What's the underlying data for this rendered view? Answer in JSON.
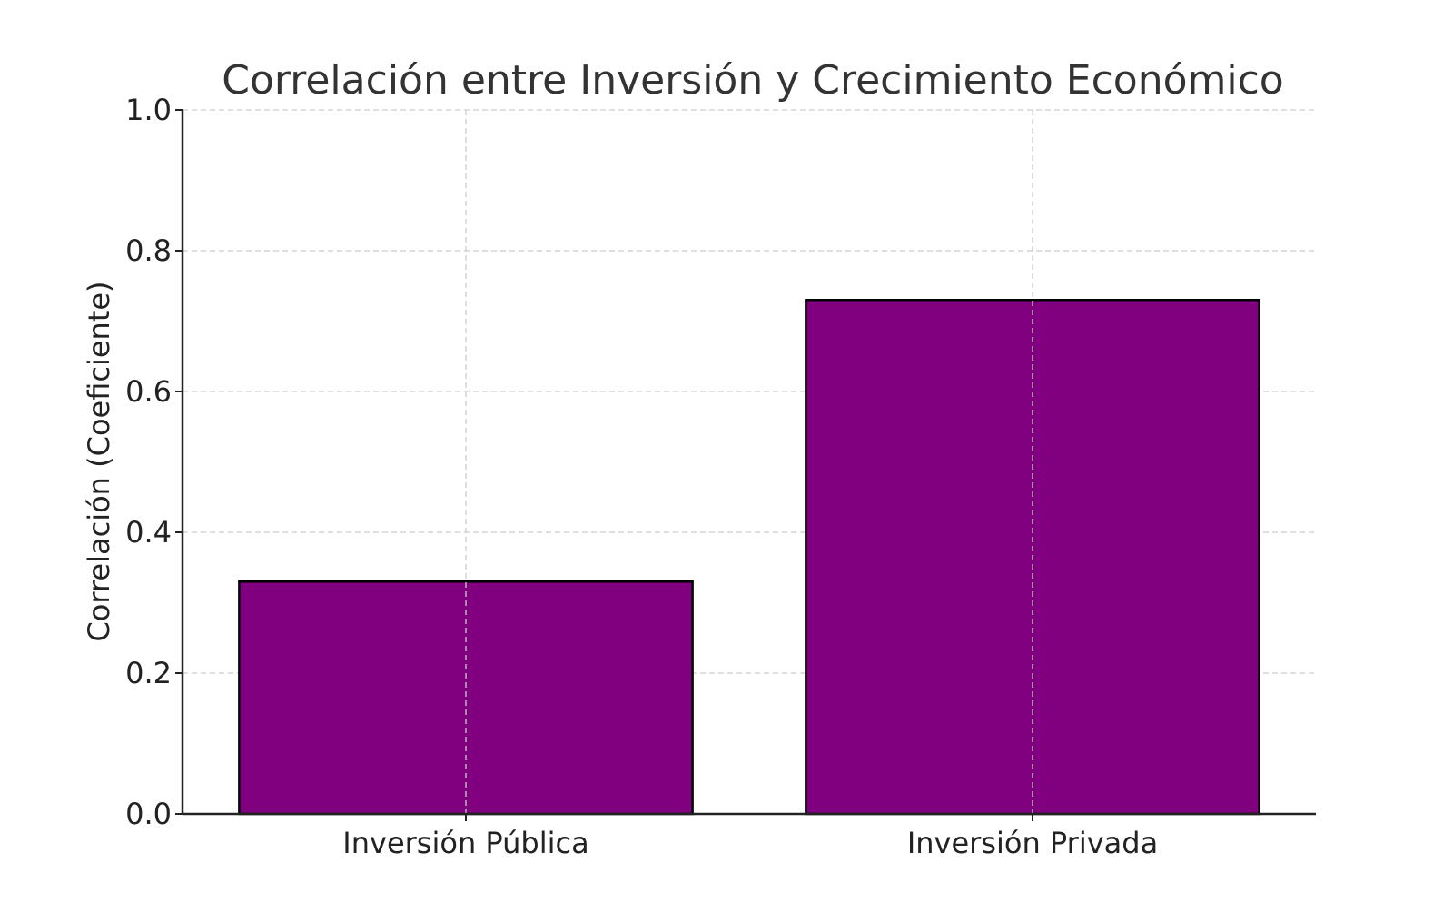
{
  "chart_data": {
    "type": "bar",
    "title": "Correlación entre Inversión y Crecimiento Económico",
    "xlabel": "",
    "ylabel": "Correlación (Coeficiente)",
    "categories": [
      "Inversión Pública",
      "Inversión Privada"
    ],
    "values": [
      0.33,
      0.73
    ],
    "ylim": [
      0,
      1.0
    ],
    "yticks": [
      "0.0",
      "0.2",
      "0.4",
      "0.6",
      "0.8",
      "1.0"
    ],
    "grid": true,
    "legend": "none",
    "colors": {
      "bar_fill": "#800080",
      "bar_edge": "#000000",
      "grid": "#cccccc",
      "text": "#333333",
      "axis": "#222222"
    }
  }
}
